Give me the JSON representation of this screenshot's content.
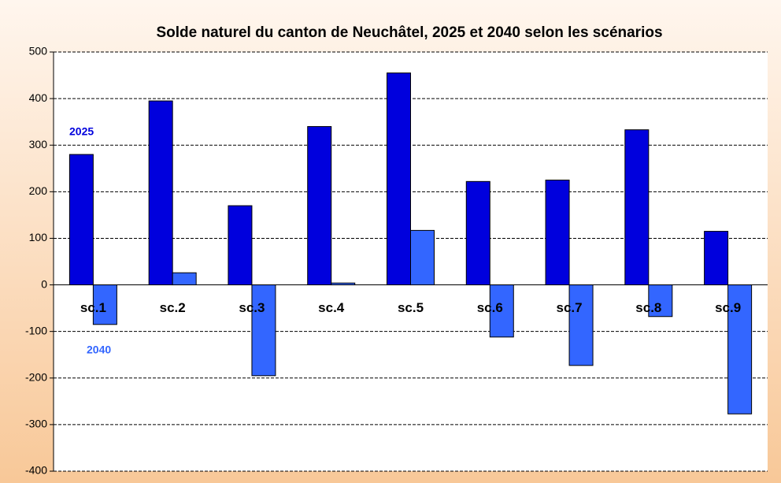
{
  "chart_data": {
    "type": "bar",
    "title": "Solde naturel du canton de Neuchâtel, 2025 et 2040 selon les scénarios",
    "categories": [
      "sc.1",
      "sc.2",
      "sc.3",
      "sc.4",
      "sc.5",
      "sc.6",
      "sc.7",
      "sc.8",
      "sc.9"
    ],
    "series": [
      {
        "name": "2025",
        "color": "#0000dd",
        "values": [
          280,
          395,
          170,
          340,
          455,
          222,
          225,
          333,
          115
        ]
      },
      {
        "name": "2040",
        "color": "#3366ff",
        "values": [
          -85,
          26,
          -195,
          4,
          117,
          -112,
          -173,
          -68,
          -277
        ]
      }
    ],
    "ylim": [
      -400,
      500
    ],
    "yticks": [
      -400,
      -300,
      -200,
      -100,
      0,
      100,
      200,
      300,
      400,
      500
    ],
    "grid": true
  }
}
